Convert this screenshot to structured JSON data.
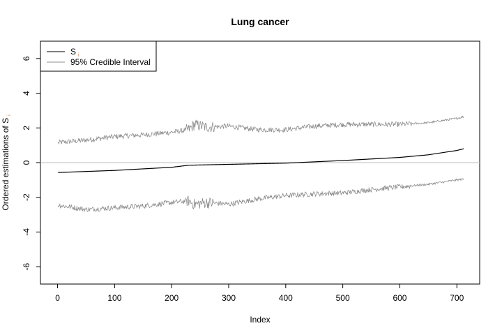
{
  "chart_data": {
    "type": "line",
    "title": "Lung cancer",
    "xlabel": "Index",
    "ylabel": "Ordered estimations of S",
    "ylabel_subscript": "i",
    "xlim": [
      -30,
      740
    ],
    "ylim": [
      -7,
      7
    ],
    "x_ticks": [
      0,
      100,
      200,
      300,
      400,
      500,
      600,
      700
    ],
    "y_ticks": [
      -6,
      -4,
      -2,
      0,
      2,
      4,
      6
    ],
    "x_tick_labels": [
      "0",
      "100",
      "200",
      "300",
      "400",
      "500",
      "600",
      "700"
    ],
    "y_tick_labels": [
      "-6",
      "-4",
      "-2",
      "0",
      "2",
      "4",
      "6"
    ],
    "reference_line": {
      "y": 0,
      "color": "#bdbdbd"
    },
    "legend": {
      "position": "top-left",
      "items": [
        {
          "label": "S",
          "subscript": "i",
          "color": "#000000"
        },
        {
          "label": "95% Credible Interval",
          "color": "#8c8c8c"
        }
      ]
    },
    "n_points": 712,
    "series": [
      {
        "name": "S",
        "color": "#000000",
        "x": [
          1,
          100,
          200,
          230,
          300,
          400,
          500,
          600,
          650,
          700,
          712
        ],
        "y": [
          -0.57,
          -0.45,
          -0.27,
          -0.15,
          -0.1,
          -0.03,
          0.12,
          0.3,
          0.45,
          0.7,
          0.8
        ]
      },
      {
        "name": "95% Credible Interval (upper)",
        "color": "#8c8c8c",
        "x": [
          1,
          50,
          100,
          150,
          200,
          230,
          240,
          260,
          300,
          350,
          400,
          450,
          500,
          550,
          600,
          650,
          700,
          712
        ],
        "y": [
          1.15,
          1.3,
          1.5,
          1.6,
          1.75,
          1.9,
          2.2,
          2.05,
          2.1,
          1.9,
          1.9,
          2.1,
          2.2,
          2.2,
          2.2,
          2.3,
          2.55,
          2.65
        ],
        "noise_amplitude": 0.15
      },
      {
        "name": "95% Credible Interval (lower)",
        "color": "#8c8c8c",
        "x": [
          1,
          50,
          100,
          150,
          200,
          230,
          240,
          260,
          300,
          350,
          400,
          450,
          500,
          550,
          600,
          650,
          700,
          712
        ],
        "y": [
          -2.45,
          -2.7,
          -2.6,
          -2.5,
          -2.3,
          -2.2,
          -2.4,
          -2.3,
          -2.4,
          -2.1,
          -1.9,
          -1.8,
          -1.75,
          -1.55,
          -1.4,
          -1.25,
          -1.0,
          -0.95
        ],
        "noise_amplitude": 0.15
      }
    ]
  }
}
